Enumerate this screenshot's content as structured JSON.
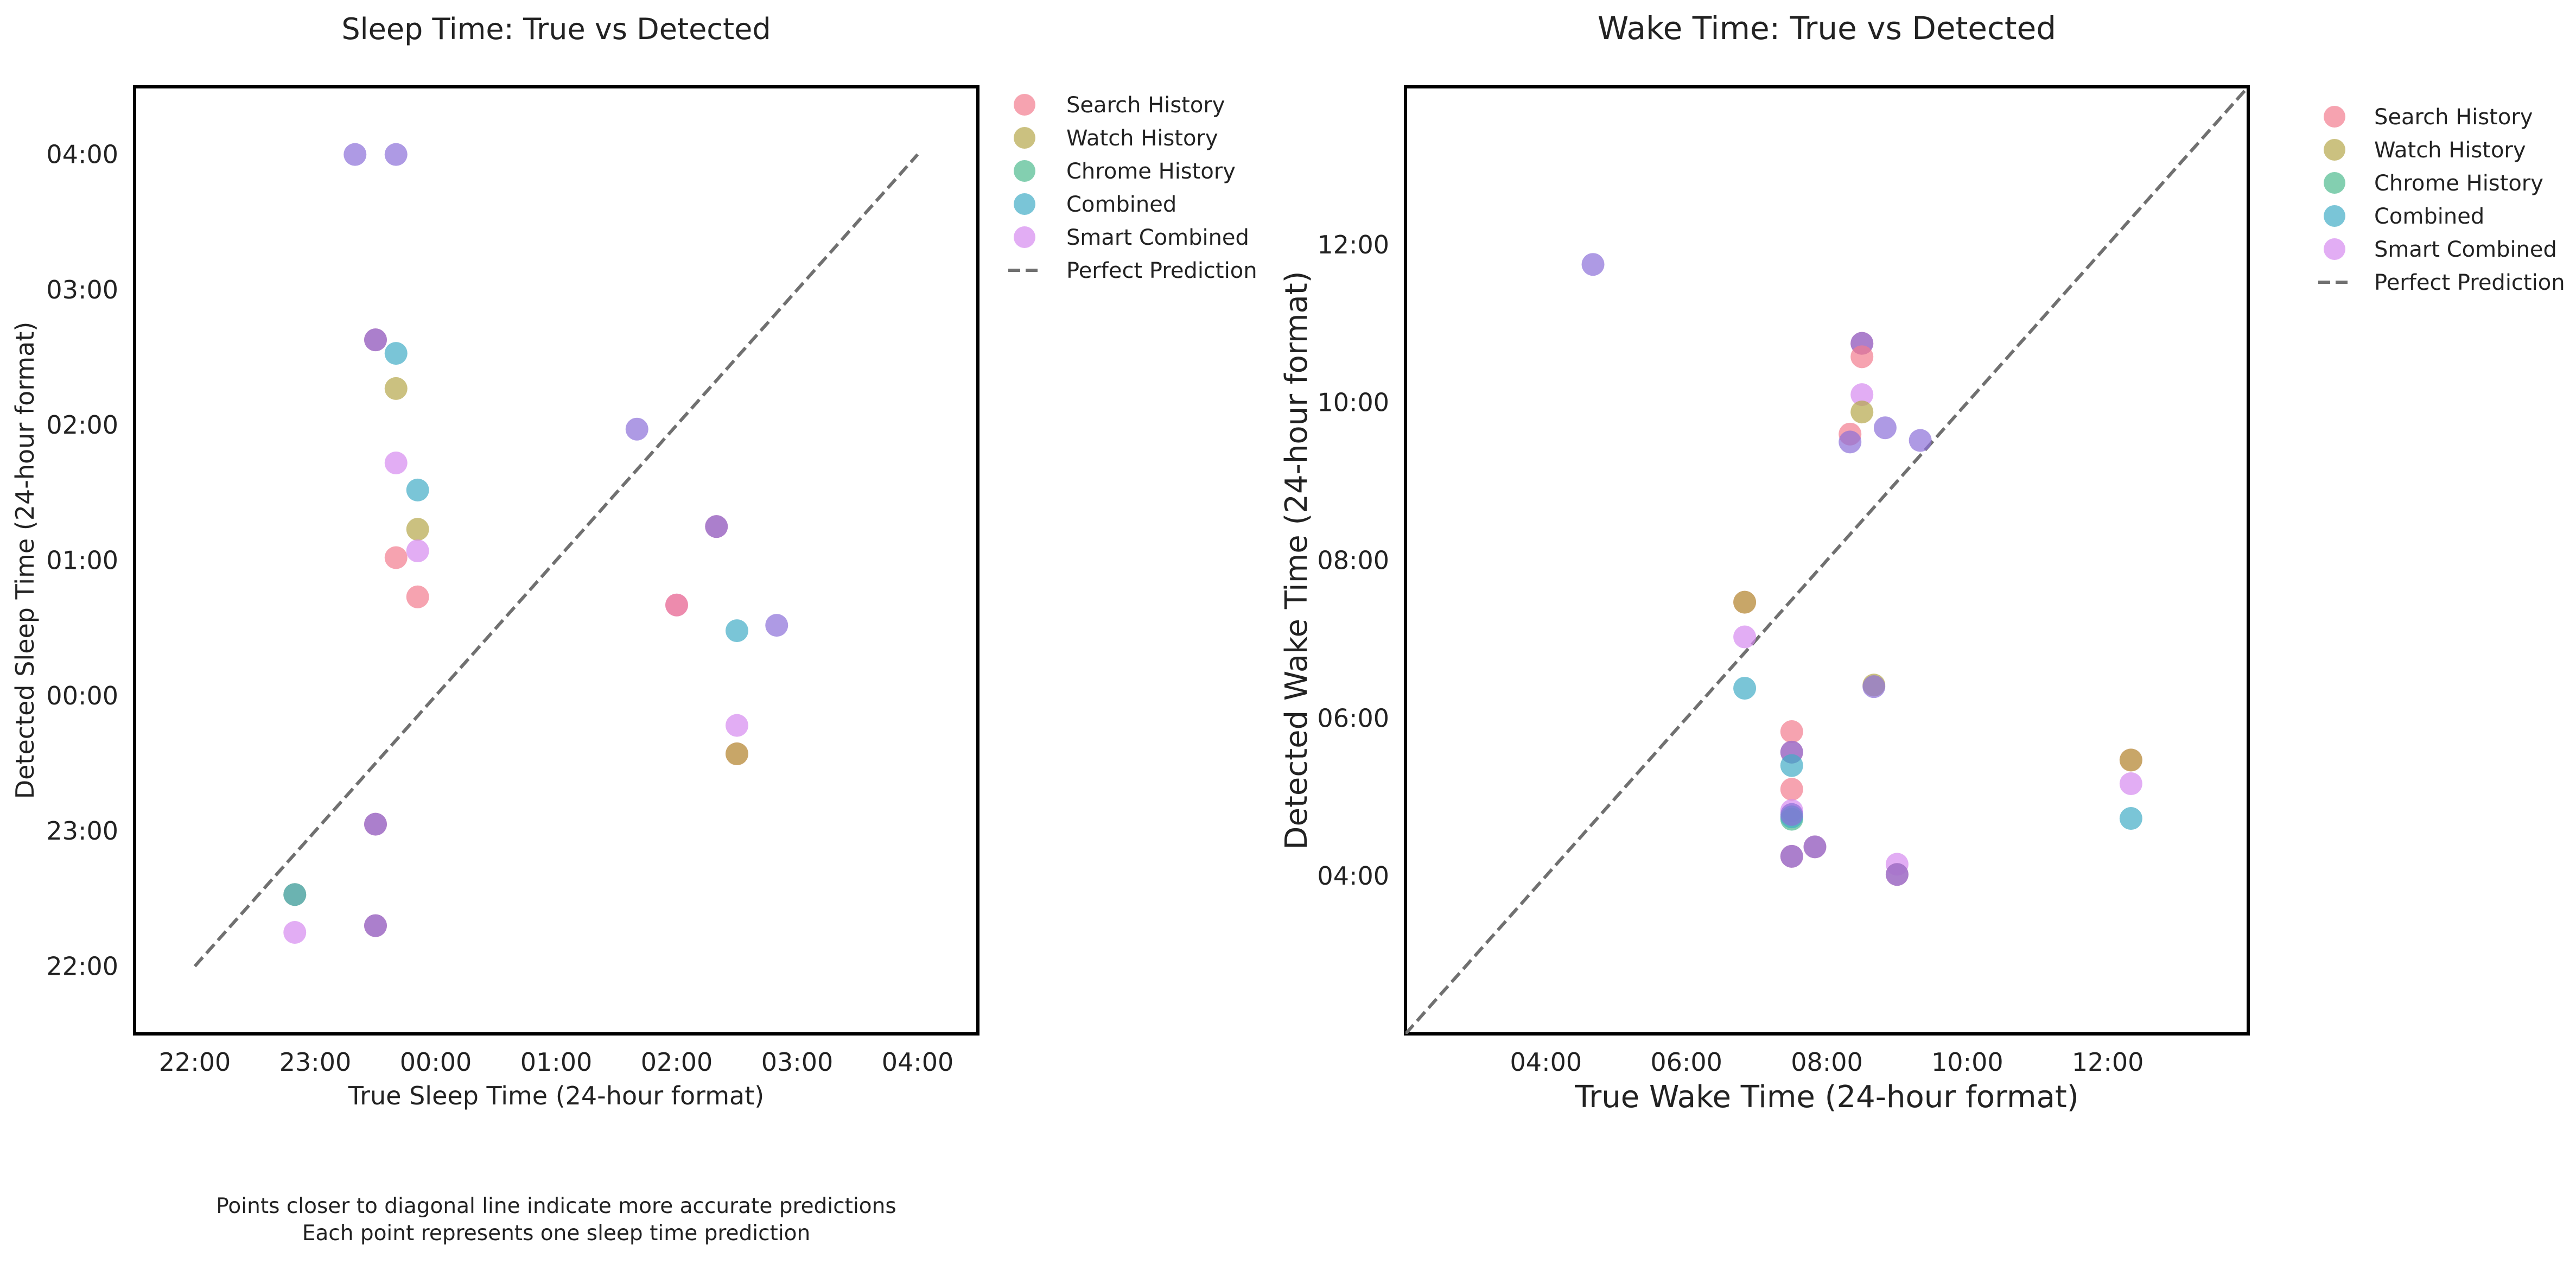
{
  "colors": {
    "search_history": "#f27c8e",
    "watch_history": "#b5a74a",
    "chrome_history": "#4fbb8e",
    "combined": "#42adc6",
    "smart_combined": "#d58af0",
    "purple_overlap": "#8c6fd8",
    "perfect": "#707070"
  },
  "footnote": {
    "line1": "Points closer to diagonal line indicate more accurate predictions",
    "line2": "Each point represents one sleep time prediction"
  },
  "chart_data": [
    {
      "type": "scatter",
      "title": "Sleep Time: True vs Detected",
      "xlabel": "True Sleep Time (24-hour format)",
      "ylabel": "Detected Sleep Time (24-hour format)",
      "xlim": [
        -2.5,
        4.5
      ],
      "ylim": [
        -2.5,
        4.5
      ],
      "xticks": [
        -2,
        -1,
        0,
        1,
        2,
        3,
        4
      ],
      "xtick_labels": [
        "22:00",
        "23:00",
        "00:00",
        "01:00",
        "02:00",
        "03:00",
        "04:00"
      ],
      "yticks": [
        -2,
        -1,
        0,
        1,
        2,
        3,
        4
      ],
      "ytick_labels": [
        "22:00",
        "23:00",
        "00:00",
        "01:00",
        "02:00",
        "03:00",
        "04:00"
      ],
      "perfect_line": [
        [
          -2,
          -2
        ],
        [
          4,
          4
        ]
      ],
      "legend": {
        "position": "outside-right",
        "entries": [
          "Search History",
          "Watch History",
          "Chrome History",
          "Combined",
          "Smart Combined",
          "Perfect Prediction"
        ]
      },
      "points": [
        {
          "x": -0.67,
          "y": 4.0,
          "c": "purple_overlap"
        },
        {
          "x": -0.33,
          "y": 4.0,
          "c": "purple_overlap"
        },
        {
          "x": -0.5,
          "y": 2.63,
          "c": "search_history"
        },
        {
          "x": -0.5,
          "y": 2.63,
          "c": "purple_overlap"
        },
        {
          "x": -0.33,
          "y": 2.53,
          "c": "combined"
        },
        {
          "x": -0.33,
          "y": 2.27,
          "c": "watch_history"
        },
        {
          "x": -0.33,
          "y": 1.72,
          "c": "smart_combined"
        },
        {
          "x": -0.15,
          "y": 1.52,
          "c": "combined"
        },
        {
          "x": -0.15,
          "y": 1.23,
          "c": "watch_history"
        },
        {
          "x": -0.15,
          "y": 1.07,
          "c": "smart_combined"
        },
        {
          "x": -0.33,
          "y": 1.02,
          "c": "search_history"
        },
        {
          "x": -0.15,
          "y": 0.73,
          "c": "search_history"
        },
        {
          "x": -0.5,
          "y": -0.95,
          "c": "search_history"
        },
        {
          "x": -0.5,
          "y": -0.95,
          "c": "purple_overlap"
        },
        {
          "x": -1.17,
          "y": -1.47,
          "c": "watch_history"
        },
        {
          "x": -1.17,
          "y": -1.47,
          "c": "combined"
        },
        {
          "x": -1.17,
          "y": -1.75,
          "c": "smart_combined"
        },
        {
          "x": -0.5,
          "y": -1.7,
          "c": "search_history"
        },
        {
          "x": -0.5,
          "y": -1.7,
          "c": "purple_overlap"
        },
        {
          "x": 1.67,
          "y": 1.97,
          "c": "purple_overlap"
        },
        {
          "x": 2.33,
          "y": 1.25,
          "c": "search_history"
        },
        {
          "x": 2.33,
          "y": 1.25,
          "c": "purple_overlap"
        },
        {
          "x": 2.0,
          "y": 0.67,
          "c": "smart_combined"
        },
        {
          "x": 2.0,
          "y": 0.67,
          "c": "search_history"
        },
        {
          "x": 2.5,
          "y": 0.48,
          "c": "combined"
        },
        {
          "x": 2.83,
          "y": 0.52,
          "c": "purple_overlap"
        },
        {
          "x": 2.5,
          "y": -0.22,
          "c": "smart_combined"
        },
        {
          "x": 2.5,
          "y": -0.43,
          "c": "search_history"
        },
        {
          "x": 2.5,
          "y": -0.43,
          "c": "watch_history"
        }
      ]
    },
    {
      "type": "scatter",
      "title": "Wake Time: True vs Detected",
      "xlabel": "True Wake Time (24-hour format)",
      "ylabel": "Detected Wake Time (24-hour format)",
      "xlim": [
        2.0,
        14.0
      ],
      "ylim": [
        2.0,
        14.0
      ],
      "xticks": [
        4,
        6,
        8,
        10,
        12
      ],
      "xtick_labels": [
        "04:00",
        "06:00",
        "08:00",
        "10:00",
        "12:00"
      ],
      "yticks": [
        4,
        6,
        8,
        10,
        12
      ],
      "ytick_labels": [
        "04:00",
        "06:00",
        "08:00",
        "10:00",
        "12:00"
      ],
      "perfect_line": [
        [
          2,
          2
        ],
        [
          14,
          14
        ]
      ],
      "legend": {
        "position": "outside-right",
        "entries": [
          "Search History",
          "Watch History",
          "Chrome History",
          "Combined",
          "Smart Combined",
          "Perfect Prediction"
        ]
      },
      "points": [
        {
          "x": 4.67,
          "y": 11.75,
          "c": "purple_overlap"
        },
        {
          "x": 8.5,
          "y": 10.75,
          "c": "search_history"
        },
        {
          "x": 8.5,
          "y": 10.75,
          "c": "purple_overlap"
        },
        {
          "x": 8.5,
          "y": 10.58,
          "c": "search_history"
        },
        {
          "x": 8.5,
          "y": 10.1,
          "c": "smart_combined"
        },
        {
          "x": 8.5,
          "y": 9.88,
          "c": "watch_history"
        },
        {
          "x": 8.33,
          "y": 9.6,
          "c": "search_history"
        },
        {
          "x": 8.33,
          "y": 9.5,
          "c": "purple_overlap"
        },
        {
          "x": 8.83,
          "y": 9.68,
          "c": "purple_overlap"
        },
        {
          "x": 9.33,
          "y": 9.52,
          "c": "purple_overlap"
        },
        {
          "x": 6.83,
          "y": 7.47,
          "c": "search_history"
        },
        {
          "x": 6.83,
          "y": 7.47,
          "c": "watch_history"
        },
        {
          "x": 6.83,
          "y": 7.03,
          "c": "smart_combined"
        },
        {
          "x": 6.83,
          "y": 6.38,
          "c": "combined"
        },
        {
          "x": 8.67,
          "y": 6.42,
          "c": "watch_history"
        },
        {
          "x": 8.67,
          "y": 6.4,
          "c": "purple_overlap"
        },
        {
          "x": 7.5,
          "y": 5.83,
          "c": "search_history"
        },
        {
          "x": 7.5,
          "y": 5.57,
          "c": "search_history"
        },
        {
          "x": 7.5,
          "y": 5.57,
          "c": "purple_overlap"
        },
        {
          "x": 7.5,
          "y": 5.4,
          "c": "combined"
        },
        {
          "x": 7.5,
          "y": 5.1,
          "c": "search_history"
        },
        {
          "x": 7.5,
          "y": 4.83,
          "c": "smart_combined"
        },
        {
          "x": 7.5,
          "y": 4.72,
          "c": "chrome_history"
        },
        {
          "x": 7.5,
          "y": 4.75,
          "c": "combined"
        },
        {
          "x": 7.5,
          "y": 4.78,
          "c": "purple_overlap"
        },
        {
          "x": 7.5,
          "y": 4.25,
          "c": "search_history"
        },
        {
          "x": 7.5,
          "y": 4.25,
          "c": "purple_overlap"
        },
        {
          "x": 7.83,
          "y": 4.37,
          "c": "search_history"
        },
        {
          "x": 7.83,
          "y": 4.37,
          "c": "purple_overlap"
        },
        {
          "x": 9.0,
          "y": 4.15,
          "c": "smart_combined"
        },
        {
          "x": 9.0,
          "y": 4.02,
          "c": "search_history"
        },
        {
          "x": 9.0,
          "y": 4.02,
          "c": "purple_overlap"
        },
        {
          "x": 12.33,
          "y": 5.47,
          "c": "search_history"
        },
        {
          "x": 12.33,
          "y": 5.47,
          "c": "watch_history"
        },
        {
          "x": 12.33,
          "y": 5.17,
          "c": "smart_combined"
        },
        {
          "x": 12.33,
          "y": 4.73,
          "c": "combined"
        }
      ]
    }
  ]
}
